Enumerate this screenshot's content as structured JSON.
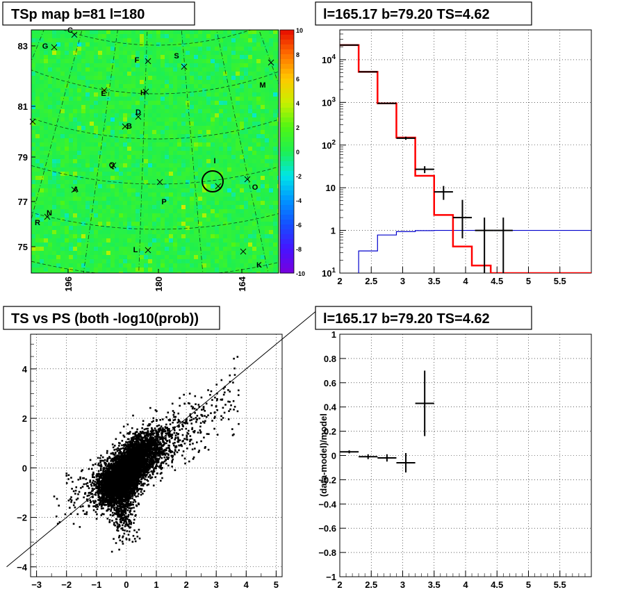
{
  "chart_data": [
    {
      "type": "heatmap",
      "title": "TSp map b=81 l=180",
      "y_ticks": [
        "83",
        "81",
        "79",
        "77",
        "75"
      ],
      "x_ticks": [
        "196",
        "180",
        "164"
      ],
      "colorbar_ticks": [
        "10",
        "8",
        "6",
        "4",
        "2",
        "0",
        "-2",
        "-4",
        "-6",
        "-8",
        "-10"
      ],
      "zlim": [
        -10,
        10
      ],
      "points": [
        {
          "label": "C"
        },
        {
          "label": "G"
        },
        {
          "label": "F"
        },
        {
          "label": "S"
        },
        {
          "label": "M"
        },
        {
          "label": "E"
        },
        {
          "label": "H"
        },
        {
          "label": "D"
        },
        {
          "label": "B"
        },
        {
          "label": "Q"
        },
        {
          "label": "I"
        },
        {
          "label": "A"
        },
        {
          "label": "O"
        },
        {
          "label": "P"
        },
        {
          "label": "N"
        },
        {
          "label": "R"
        },
        {
          "label": "L"
        },
        {
          "label": "K"
        }
      ]
    },
    {
      "type": "line",
      "title": "l=165.17 b=79.20 TS=4.62",
      "yscale": "log",
      "xlim": [
        2,
        6
      ],
      "ylim": [
        0.1,
        50000
      ],
      "x_ticks": [
        "2",
        "2.5",
        "3",
        "3.5",
        "4",
        "4.5",
        "5",
        "5.5"
      ],
      "y_ticks": [
        "10^1",
        "1",
        "10",
        "10^2",
        "10^3",
        "10^4"
      ],
      "grid": true,
      "model_red": {
        "edges": [
          2.0,
          2.3,
          2.6,
          2.9,
          3.2,
          3.5,
          3.8,
          4.1,
          4.4,
          6.0
        ],
        "values": [
          22000,
          5200,
          950,
          150,
          19,
          2.3,
          0.42,
          0.15,
          0.1
        ]
      },
      "model_blue": {
        "edges": [
          2.3,
          2.6,
          2.9,
          3.2,
          3.5,
          3.8,
          6.0
        ],
        "values": [
          0.33,
          0.78,
          0.94,
          0.99,
          1.0,
          1.0
        ]
      },
      "data_points": [
        {
          "x": 2.15,
          "y": 22000,
          "xerr": 0.15,
          "ylo": 21700,
          "yhi": 22300
        },
        {
          "x": 2.45,
          "y": 5200,
          "xerr": 0.15,
          "ylo": 5050,
          "yhi": 5350
        },
        {
          "x": 2.75,
          "y": 950,
          "xerr": 0.15,
          "ylo": 920,
          "yhi": 980
        },
        {
          "x": 3.05,
          "y": 145,
          "xerr": 0.15,
          "ylo": 133,
          "yhi": 157
        },
        {
          "x": 3.35,
          "y": 27,
          "xerr": 0.15,
          "ylo": 22,
          "yhi": 32
        },
        {
          "x": 3.65,
          "y": 8,
          "xerr": 0.15,
          "ylo": 5.2,
          "yhi": 11
        },
        {
          "x": 3.95,
          "y": 2,
          "xerr": 0.15,
          "ylo": 0.65,
          "yhi": 5.2
        },
        {
          "x": 4.3,
          "y": 1,
          "xerr": 0.15,
          "ylo": 0.1,
          "yhi": 2
        },
        {
          "x": 4.6,
          "y": 1,
          "xerr": 0.15,
          "ylo": 0.1,
          "yhi": 2
        }
      ]
    },
    {
      "type": "scatter",
      "title": "TS vs PS (both -log10(prob))",
      "xlim": [
        -3.2,
        5.2
      ],
      "ylim": [
        -4.4,
        5.4
      ],
      "x_ticks": [
        "-3",
        "-2",
        "-1",
        "0",
        "1",
        "2",
        "3",
        "4",
        "5"
      ],
      "y_ticks": [
        "4",
        "2",
        "0",
        "-2",
        "-4"
      ],
      "grid": true,
      "diagonal": {
        "from": [
          -4.0,
          -4.0
        ],
        "to": [
          6.5,
          6.5
        ]
      }
    },
    {
      "type": "scatter",
      "title": "l=165.17 b=79.20 TS=4.62",
      "ylabel": "(data-model)/model",
      "xlim": [
        2,
        6
      ],
      "ylim": [
        -1,
        1
      ],
      "x_ticks": [
        "2",
        "2.5",
        "3",
        "3.5",
        "4",
        "4.5",
        "5",
        "5.5"
      ],
      "y_ticks": [
        "1",
        "0.8",
        "0.6",
        "0.4",
        "0.2",
        "0",
        "-0.2",
        "-0.4",
        "-0.6",
        "-0.8",
        "-1"
      ],
      "grid": true,
      "points": [
        {
          "x": 2.15,
          "y": 0.03,
          "xerr": 0.15,
          "yerr": 0.012
        },
        {
          "x": 2.45,
          "y": -0.01,
          "xerr": 0.15,
          "yerr": 0.02
        },
        {
          "x": 2.75,
          "y": -0.02,
          "xerr": 0.15,
          "yerr": 0.03
        },
        {
          "x": 3.05,
          "y": -0.06,
          "xerr": 0.15,
          "yerr": 0.08
        },
        {
          "x": 3.35,
          "y": 0.43,
          "xerr": 0.15,
          "yerr": 0.27
        }
      ]
    }
  ]
}
